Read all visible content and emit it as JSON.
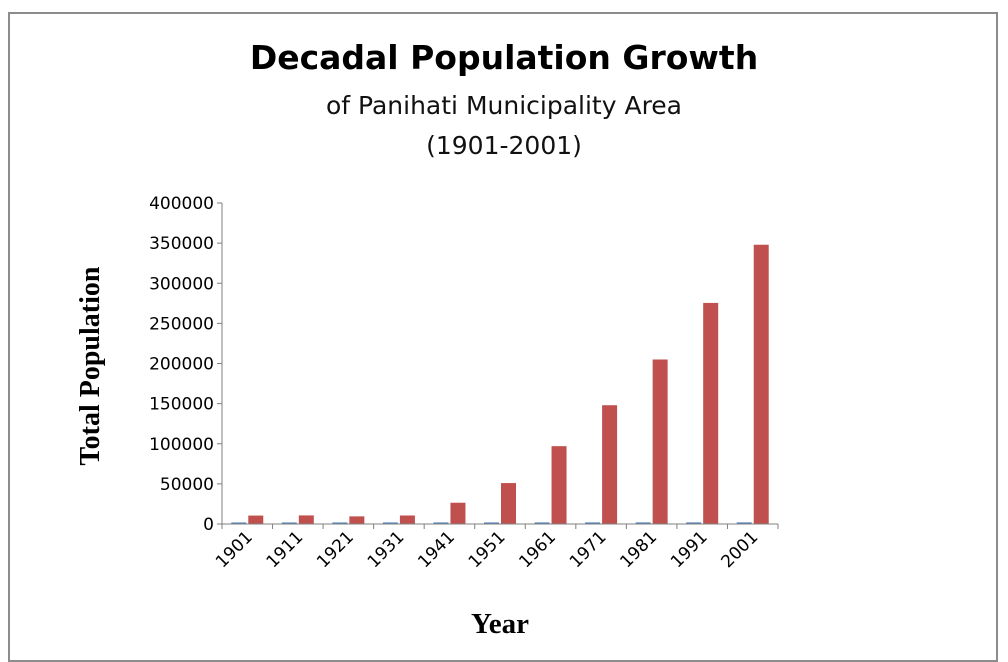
{
  "chart_data": {
    "type": "bar",
    "title": "Decadal Population Growth",
    "subtitle_lines": [
      "of Panihati Municipality Area",
      "(1901-2001)"
    ],
    "xlabel": "Year",
    "ylabel": "Total Population",
    "categories": [
      "1901",
      "1911",
      "1921",
      "1931",
      "1941",
      "1951",
      "1961",
      "1971",
      "1981",
      "1991",
      "2001"
    ],
    "series": [
      {
        "color": "#4f81bd",
        "values": [
          1901,
          1911,
          1921,
          1931,
          1941,
          1951,
          1961,
          1971,
          1981,
          1991,
          2001
        ]
      },
      {
        "color": "#c0504d",
        "values": [
          10500,
          10700,
          9500,
          10600,
          26500,
          51000,
          97000,
          148000,
          205000,
          275500,
          348000
        ]
      }
    ],
    "ylim": [
      0,
      400000
    ],
    "yticks": [
      0,
      50000,
      100000,
      150000,
      200000,
      250000,
      300000,
      350000,
      400000
    ],
    "grid": false,
    "legend": "none"
  }
}
